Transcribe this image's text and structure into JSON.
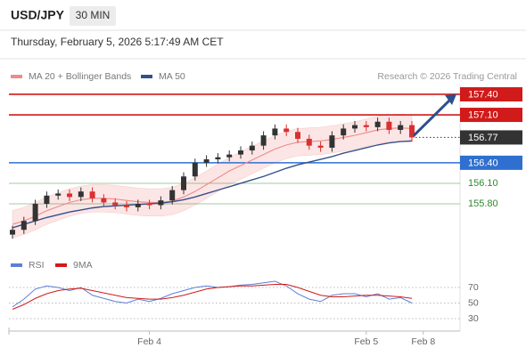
{
  "header": {
    "symbol": "USD/JPY",
    "timeframe": "30 MIN",
    "timestamp": "Thursday, February 5, 2026 5:17:49 AM CET",
    "credit": "Research © 2026 Trading Central"
  },
  "chart_data": [
    {
      "type": "candlestick",
      "open": [
        155.35,
        155.42,
        155.55,
        155.8,
        155.92,
        155.95,
        155.9,
        155.98,
        155.88,
        155.82,
        155.78,
        155.75,
        155.8,
        155.78,
        155.85,
        156.0,
        156.2,
        156.4,
        156.45,
        156.48,
        156.52,
        156.58,
        156.65,
        156.8,
        156.9,
        156.85,
        156.75,
        156.65,
        156.62,
        156.8,
        156.9,
        156.95,
        156.92,
        157.0,
        156.88,
        156.95
      ],
      "high": [
        155.48,
        155.61,
        155.86,
        155.98,
        156.01,
        156.01,
        156.04,
        156.04,
        155.94,
        155.88,
        155.84,
        155.86,
        155.86,
        155.91,
        156.06,
        156.26,
        156.46,
        156.51,
        156.54,
        156.58,
        156.64,
        156.71,
        156.86,
        156.96,
        156.96,
        156.91,
        156.81,
        156.71,
        156.86,
        156.96,
        157.01,
        157.01,
        157.06,
        157.06,
        157.01,
        157.01
      ],
      "low": [
        155.29,
        155.36,
        155.49,
        155.74,
        155.86,
        155.84,
        155.84,
        155.82,
        155.76,
        155.72,
        155.69,
        155.69,
        155.72,
        155.72,
        155.79,
        155.94,
        156.14,
        156.34,
        156.39,
        156.42,
        156.46,
        156.52,
        156.59,
        156.74,
        156.79,
        156.69,
        156.59,
        156.56,
        156.56,
        156.74,
        156.84,
        156.86,
        156.86,
        156.82,
        156.82,
        156.71
      ],
      "close": [
        155.42,
        155.55,
        155.8,
        155.92,
        155.95,
        155.9,
        155.98,
        155.88,
        155.82,
        155.78,
        155.75,
        155.8,
        155.78,
        155.85,
        156.0,
        156.2,
        156.4,
        156.45,
        156.48,
        156.52,
        156.58,
        156.65,
        156.8,
        156.9,
        156.85,
        156.75,
        156.65,
        156.62,
        156.8,
        156.9,
        156.95,
        156.92,
        157.0,
        156.88,
        156.95,
        156.77
      ],
      "up_color": "#333333",
      "down_color": "#d93030",
      "series": [
        {
          "name": "MA 20 + Bollinger Bands",
          "color": "#f08a8a",
          "values": [
            155.5,
            155.55,
            155.62,
            155.7,
            155.76,
            155.82,
            155.86,
            155.88,
            155.88,
            155.87,
            155.85,
            155.83,
            155.82,
            155.82,
            155.84,
            155.9,
            155.98,
            156.08,
            156.18,
            156.28,
            156.36,
            156.44,
            156.52,
            156.6,
            156.66,
            156.7,
            156.71,
            156.72,
            156.74,
            156.77,
            156.8,
            156.84,
            156.88,
            156.9,
            156.91,
            156.9
          ],
          "upper": [
            155.7,
            155.75,
            155.82,
            155.9,
            155.96,
            156.02,
            156.06,
            156.08,
            156.08,
            156.07,
            156.05,
            156.03,
            156.02,
            156.02,
            156.04,
            156.1,
            156.18,
            156.28,
            156.38,
            156.48,
            156.56,
            156.64,
            156.72,
            156.8,
            156.86,
            156.9,
            156.91,
            156.92,
            156.94,
            156.97,
            157.0,
            157.04,
            157.08,
            157.1,
            157.11,
            157.1
          ],
          "lower": [
            155.3,
            155.35,
            155.42,
            155.5,
            155.56,
            155.62,
            155.66,
            155.68,
            155.68,
            155.67,
            155.65,
            155.63,
            155.62,
            155.62,
            155.64,
            155.7,
            155.78,
            155.88,
            155.98,
            156.08,
            156.16,
            156.24,
            156.32,
            156.4,
            156.46,
            156.5,
            156.51,
            156.52,
            156.54,
            156.57,
            156.6,
            156.64,
            156.68,
            156.7,
            156.71,
            156.7
          ]
        },
        {
          "name": "MA 50",
          "color": "#34508a",
          "values": [
            155.45,
            155.5,
            155.55,
            155.6,
            155.64,
            155.68,
            155.71,
            155.74,
            155.76,
            155.77,
            155.78,
            155.79,
            155.8,
            155.81,
            155.83,
            155.86,
            155.9,
            155.95,
            156.0,
            156.05,
            156.1,
            156.15,
            156.2,
            156.26,
            156.32,
            156.37,
            156.41,
            156.45,
            156.49,
            156.54,
            156.58,
            156.62,
            156.66,
            156.69,
            156.71,
            156.72
          ]
        }
      ],
      "levels": [
        {
          "value": 157.4,
          "label": "157.40",
          "color": "#d11a1a",
          "style": "box"
        },
        {
          "value": 157.1,
          "label": "157.10",
          "color": "#d11a1a",
          "style": "box"
        },
        {
          "value": 156.77,
          "label": "156.77",
          "color": "#333333",
          "style": "current"
        },
        {
          "value": 156.4,
          "label": "156.40",
          "color": "#2f6fd0",
          "style": "box"
        },
        {
          "value": 156.1,
          "label": "156.10",
          "color": "#2e8b2e",
          "style": "text"
        },
        {
          "value": 155.8,
          "label": "155.80",
          "color": "#2e8b2e",
          "style": "text"
        }
      ],
      "ylim": [
        155.25,
        157.6
      ],
      "x_labels": [
        null,
        null,
        null,
        null,
        null,
        null,
        null,
        null,
        null,
        null,
        null,
        null,
        "Feb 4",
        null,
        null,
        null,
        null,
        null,
        null,
        null,
        null,
        null,
        null,
        null,
        null,
        null,
        null,
        null,
        null,
        null,
        null,
        "Feb 5",
        null,
        null,
        null,
        null,
        "Feb 8"
      ]
    },
    {
      "type": "line",
      "series": [
        {
          "name": "RSI",
          "color": "#5b7fd6",
          "values": [
            45,
            55,
            68,
            72,
            70,
            66,
            70,
            60,
            56,
            52,
            50,
            55,
            52,
            56,
            62,
            66,
            70,
            72,
            70,
            71,
            73,
            74,
            76,
            78,
            72,
            62,
            55,
            52,
            60,
            62,
            62,
            58,
            62,
            55,
            57,
            50
          ]
        },
        {
          "name": "9MA",
          "color": "#d11a1a",
          "values": [
            42,
            48,
            56,
            62,
            66,
            68,
            69,
            66,
            63,
            60,
            57,
            56,
            55,
            55,
            57,
            60,
            64,
            68,
            70,
            71,
            72,
            72,
            73,
            74,
            74,
            70,
            65,
            60,
            58,
            58,
            59,
            60,
            60,
            59,
            58,
            56
          ]
        }
      ],
      "ylim": [
        20,
        85
      ],
      "yticks": [
        70,
        50,
        30
      ]
    }
  ]
}
